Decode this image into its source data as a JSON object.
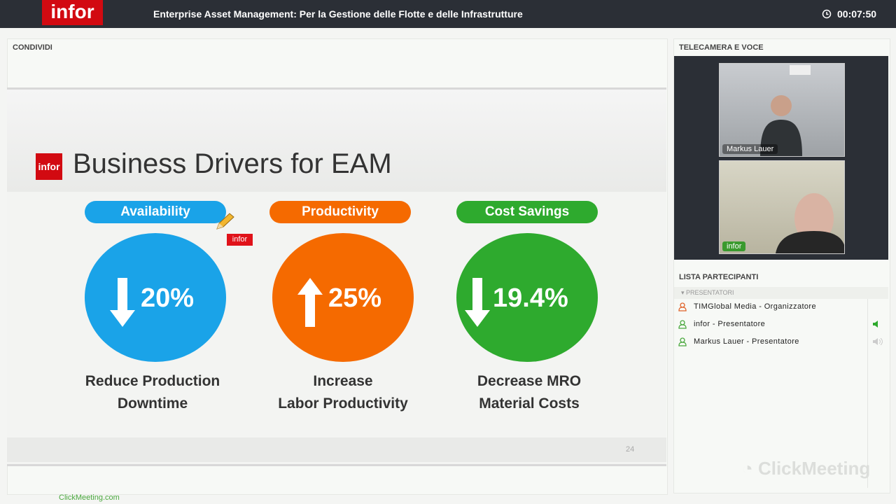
{
  "header": {
    "logo": "infor",
    "title": "Enterprise Asset Management: Per la Gestione delle Flotte e delle Infrastrutture",
    "timer": "00:07:50"
  },
  "share_panel": {
    "title": "CONDIVIDI",
    "slide": {
      "logo": "infor",
      "title": "Business Drivers for EAM",
      "annotation": "infor",
      "page": "24",
      "drivers": [
        {
          "label": "Availability",
          "value": "20%",
          "caption": [
            "Reduce Production",
            "Downtime"
          ]
        },
        {
          "label": "Productivity",
          "value": "25%",
          "caption": [
            "Increase",
            "Labor Productivity"
          ]
        },
        {
          "label": "Cost Savings",
          "value": "19.4%",
          "caption": [
            "Decrease MRO",
            "Material Costs"
          ]
        }
      ]
    }
  },
  "camera_panel": {
    "title": "TELECAMERA E VOCE",
    "videos": [
      {
        "label": "Markus Lauer"
      },
      {
        "label": "infor"
      }
    ]
  },
  "participants": {
    "title": "LISTA PARTECIPANTI",
    "group": "PRESENTATORI",
    "list": [
      "TIMGlobal Media - Organizzatore",
      "infor - Presentatore",
      "Markus Lauer - Presentatore"
    ]
  },
  "watermark": "ClickMeeting",
  "footer_link": "ClickMeeting.com"
}
